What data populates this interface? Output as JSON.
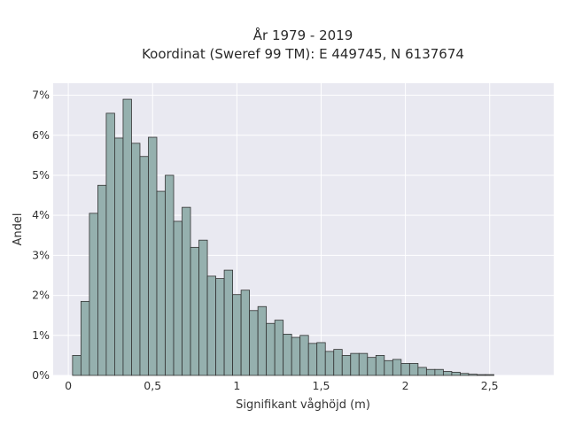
{
  "chart_data": {
    "type": "bar",
    "title_lines": [
      "År 1979 - 2019",
      "Koordinat (Sweref 99 TM): E 449745, N 6137674"
    ],
    "xlabel": "Signifikant våghöjd (m)",
    "ylabel": "Andel",
    "bin_width": 0.05,
    "bin_start": 0.025,
    "values": [
      0.5,
      1.85,
      4.05,
      4.75,
      6.55,
      5.93,
      6.9,
      5.8,
      5.47,
      5.95,
      4.6,
      5.0,
      3.85,
      4.2,
      3.2,
      3.38,
      2.48,
      2.42,
      2.63,
      2.02,
      2.13,
      1.62,
      1.72,
      1.3,
      1.38,
      1.03,
      0.95,
      1.0,
      0.8,
      0.82,
      0.6,
      0.65,
      0.5,
      0.55,
      0.55,
      0.45,
      0.5,
      0.37,
      0.4,
      0.3,
      0.3,
      0.2,
      0.15,
      0.15,
      0.1,
      0.08,
      0.05,
      0.03,
      0.02,
      0.02
    ],
    "xlim": [
      -0.09,
      2.88
    ],
    "ylim": [
      0,
      7.3
    ],
    "x_ticks": [
      0,
      0.5,
      1,
      1.5,
      2,
      2.5
    ],
    "x_tick_labels": [
      "0",
      "0,5",
      "1",
      "1,5",
      "2",
      "2,5"
    ],
    "y_ticks": [
      0,
      1,
      2,
      3,
      4,
      5,
      6,
      7
    ],
    "y_tick_labels": [
      "0%",
      "1%",
      "2%",
      "3%",
      "4%",
      "5%",
      "6%",
      "7%"
    ],
    "grid": true,
    "colors": {
      "background": "#e9e9f1",
      "bar_fill": "#95b0ae",
      "bar_stroke": "#333333",
      "grid": "#ffffff"
    }
  }
}
